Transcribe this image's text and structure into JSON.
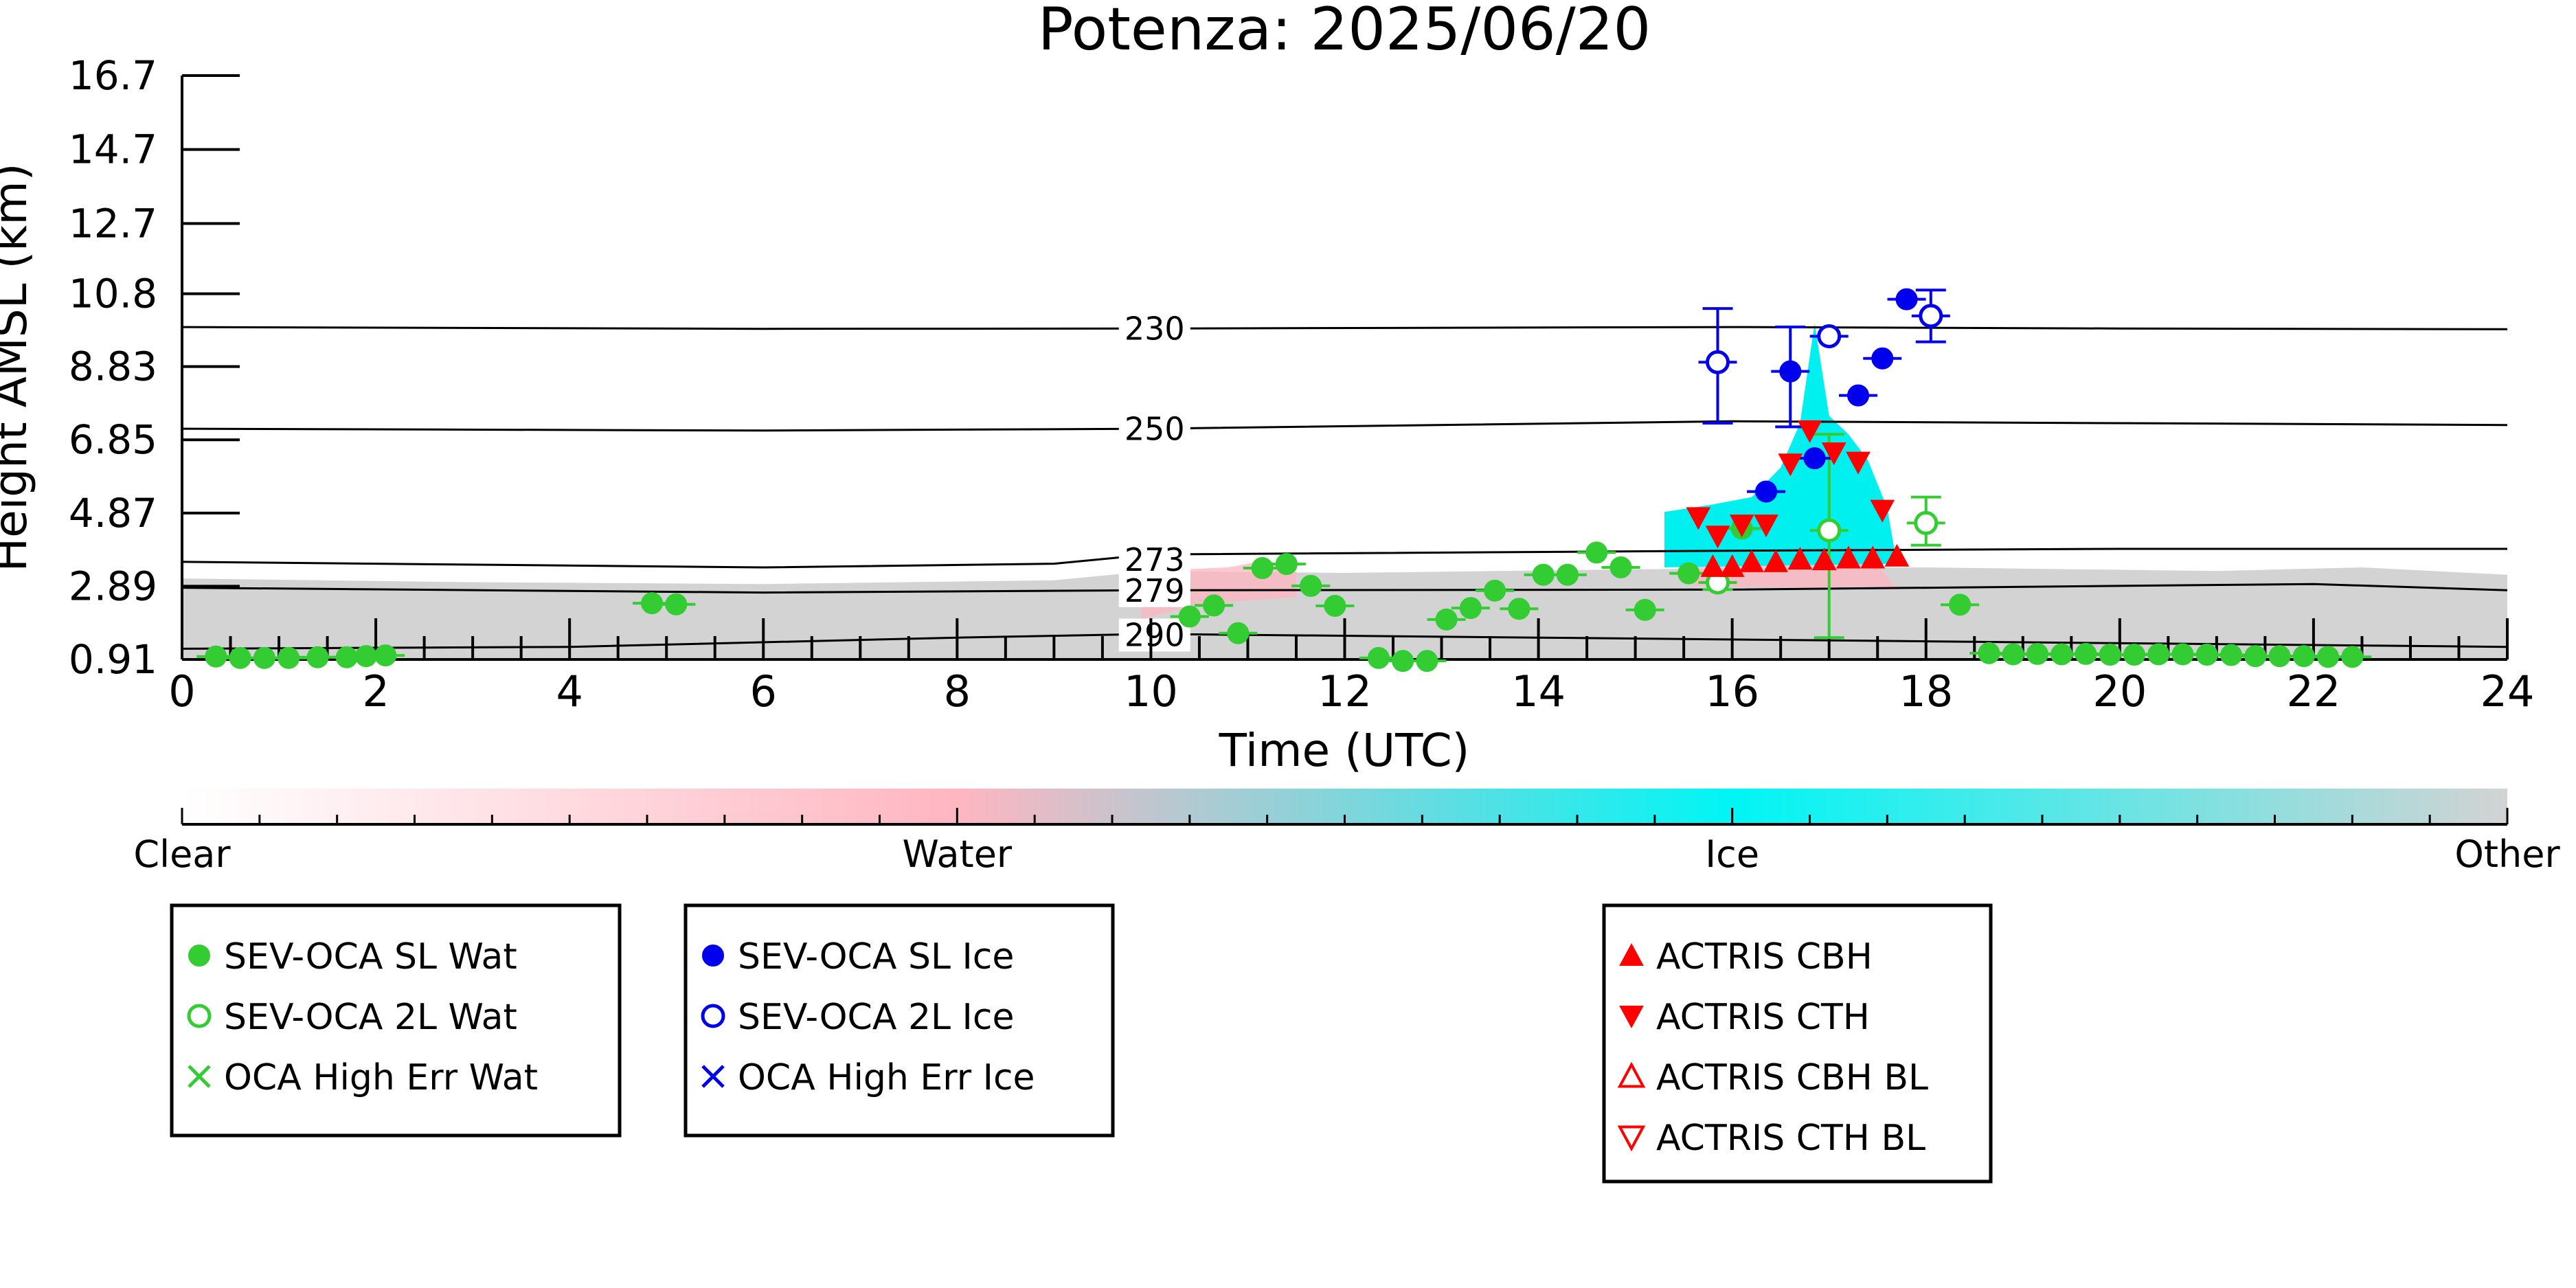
{
  "chart_data": {
    "type": "scatter",
    "title": "Potenza: 2025/06/20",
    "xlabel": "Time (UTC)",
    "ylabel": "Height AMSL (km)",
    "xlim": [
      0,
      24
    ],
    "ylim": [
      0.91,
      16.7
    ],
    "x_ticks": [
      "0",
      "2",
      "4",
      "6",
      "8",
      "10",
      "12",
      "14",
      "16",
      "18",
      "20",
      "22",
      "24"
    ],
    "y_ticks": [
      "0.91",
      "2.89",
      "4.87",
      "6.85",
      "8.83",
      "10.8",
      "12.7",
      "14.7",
      "16.7"
    ],
    "isotherms": [
      {
        "label": "230",
        "label_x": 9.4,
        "points": [
          [
            0,
            9.9
          ],
          [
            6,
            9.85
          ],
          [
            10,
            9.86
          ],
          [
            16,
            9.9
          ],
          [
            20,
            9.86
          ],
          [
            24,
            9.84
          ]
        ]
      },
      {
        "label": "250",
        "label_x": 9.4,
        "points": [
          [
            0,
            7.15
          ],
          [
            6,
            7.1
          ],
          [
            10,
            7.15
          ],
          [
            16,
            7.35
          ],
          [
            20,
            7.3
          ],
          [
            24,
            7.25
          ]
        ]
      },
      {
        "label": "273",
        "label_x": 9.4,
        "points": [
          [
            0,
            3.55
          ],
          [
            6,
            3.4
          ],
          [
            9,
            3.5
          ],
          [
            10,
            3.75
          ],
          [
            16,
            3.85
          ],
          [
            20,
            3.9
          ],
          [
            24,
            3.9
          ]
        ]
      },
      {
        "label": "279",
        "label_x": 9.4,
        "points": [
          [
            0,
            2.85
          ],
          [
            6,
            2.72
          ],
          [
            10,
            2.78
          ],
          [
            16,
            2.8
          ],
          [
            20,
            2.9
          ],
          [
            22,
            2.95
          ],
          [
            24,
            2.78
          ]
        ]
      },
      {
        "label": "290",
        "label_x": 9.4,
        "points": [
          [
            0,
            1.2
          ],
          [
            4,
            1.25
          ],
          [
            8,
            1.5
          ],
          [
            10,
            1.6
          ],
          [
            14,
            1.5
          ],
          [
            18,
            1.4
          ],
          [
            22,
            1.3
          ],
          [
            24,
            1.25
          ]
        ]
      }
    ],
    "cloud_mask": {
      "classes": [
        "Clear",
        "Water",
        "Ice",
        "Other"
      ],
      "colorbar_colors": [
        "#ffffff",
        "#ffb6c1",
        "#00ffff",
        "#d3d3d3"
      ],
      "other_band": [
        [
          0,
          3.1
        ],
        [
          3,
          3.0
        ],
        [
          6,
          2.95
        ],
        [
          9,
          3.05
        ],
        [
          10,
          3.3
        ],
        [
          12,
          3.25
        ],
        [
          15,
          3.35
        ],
        [
          18,
          3.4
        ],
        [
          21,
          3.3
        ],
        [
          22.5,
          3.4
        ],
        [
          24,
          3.2
        ]
      ],
      "ice_regions": [
        [
          [
            15.3,
            3.4
          ],
          [
            15.3,
            4.9
          ],
          [
            15.8,
            5.1
          ],
          [
            16.2,
            5.3
          ],
          [
            16.5,
            6.1
          ],
          [
            16.7,
            7.3
          ],
          [
            16.85,
            10.0
          ],
          [
            17.0,
            7.5
          ],
          [
            17.2,
            7.0
          ],
          [
            17.4,
            6.3
          ],
          [
            17.6,
            5.0
          ],
          [
            17.7,
            3.5
          ]
        ]
      ],
      "water_regions": [
        [
          [
            9.9,
            2.0
          ],
          [
            9.9,
            3.3
          ],
          [
            10.8,
            3.4
          ],
          [
            11.2,
            3.6
          ],
          [
            11.5,
            3.3
          ],
          [
            11.5,
            2.6
          ],
          [
            10.5,
            2.4
          ]
        ],
        [
          [
            15.6,
            2.9
          ],
          [
            15.6,
            3.6
          ],
          [
            16.5,
            3.5
          ],
          [
            17.5,
            3.5
          ],
          [
            17.7,
            2.8
          ]
        ]
      ]
    },
    "series": [
      {
        "name": "SEV-OCA SL Wat",
        "color": "#33cc33",
        "marker": "filled-circle",
        "points": [
          [
            0.35,
            0.99
          ],
          [
            0.6,
            0.95
          ],
          [
            0.85,
            0.95
          ],
          [
            1.1,
            0.95
          ],
          [
            1.4,
            0.97
          ],
          [
            1.7,
            0.97
          ],
          [
            1.9,
            1.0
          ],
          [
            2.1,
            1.02
          ],
          [
            4.85,
            2.43
          ],
          [
            5.1,
            2.4
          ],
          [
            10.4,
            2.07
          ],
          [
            10.65,
            2.37
          ],
          [
            10.9,
            1.62
          ],
          [
            11.15,
            3.38
          ],
          [
            11.4,
            3.49
          ],
          [
            11.65,
            2.9
          ],
          [
            11.9,
            2.36
          ],
          [
            12.35,
            0.95
          ],
          [
            12.6,
            0.87
          ],
          [
            12.85,
            0.87
          ],
          [
            13.05,
            1.99
          ],
          [
            13.3,
            2.3
          ],
          [
            13.55,
            2.77
          ],
          [
            13.8,
            2.28
          ],
          [
            14.05,
            3.2
          ],
          [
            14.3,
            3.2
          ],
          [
            14.6,
            3.8
          ],
          [
            14.85,
            3.4
          ],
          [
            15.1,
            2.25
          ],
          [
            15.55,
            3.24
          ],
          [
            16.1,
            4.45
          ],
          [
            18.35,
            2.39
          ],
          [
            18.65,
            1.08
          ],
          [
            18.9,
            1.05
          ],
          [
            19.15,
            1.06
          ],
          [
            19.4,
            1.05
          ],
          [
            19.65,
            1.06
          ],
          [
            19.9,
            1.04
          ],
          [
            20.15,
            1.04
          ],
          [
            20.4,
            1.05
          ],
          [
            20.65,
            1.05
          ],
          [
            20.9,
            1.04
          ],
          [
            21.15,
            1.03
          ],
          [
            21.4,
            1.0
          ],
          [
            21.65,
            1.0
          ],
          [
            21.9,
            1.0
          ],
          [
            22.15,
            0.98
          ],
          [
            22.4,
            0.98
          ]
        ]
      },
      {
        "name": "SEV-OCA 2L Wat",
        "color": "#33cc33",
        "marker": "open-circle",
        "points": [
          [
            15.85,
            2.99
          ],
          [
            17.0,
            4.4
          ],
          [
            18.0,
            4.6
          ]
        ],
        "errors": [
          [
            15.85,
            2.8,
            3.2
          ],
          [
            17.0,
            1.5,
            7.0
          ],
          [
            18.0,
            4.0,
            5.3
          ]
        ]
      },
      {
        "name": "OCA High Err Wat",
        "color": "#33cc33",
        "marker": "x",
        "points": []
      },
      {
        "name": "SEV-OCA SL Ice",
        "color": "#0000ee",
        "marker": "filled-circle",
        "points": [
          [
            16.35,
            5.45
          ],
          [
            16.6,
            8.7
          ],
          [
            16.85,
            6.35
          ],
          [
            17.3,
            8.05
          ],
          [
            17.55,
            9.05
          ],
          [
            17.8,
            10.65
          ]
        ],
        "errors": [
          [
            16.6,
            7.2,
            9.9
          ]
        ]
      },
      {
        "name": "SEV-OCA 2L Ice",
        "color": "#0000ee",
        "marker": "open-circle",
        "points": [
          [
            15.85,
            8.95
          ],
          [
            17.0,
            9.65
          ],
          [
            18.05,
            10.2
          ]
        ],
        "errors": [
          [
            15.85,
            7.3,
            10.4
          ],
          [
            18.05,
            9.5,
            10.9
          ]
        ]
      },
      {
        "name": "OCA High Err Ice",
        "color": "#0000ee",
        "marker": "x",
        "points": []
      },
      {
        "name": "ACTRIS CBH",
        "color": "#ff0000",
        "marker": "triangle-up",
        "points": [
          [
            15.8,
            3.42
          ],
          [
            16.0,
            3.42
          ],
          [
            16.2,
            3.55
          ],
          [
            16.45,
            3.55
          ],
          [
            16.7,
            3.62
          ],
          [
            16.95,
            3.6
          ],
          [
            17.2,
            3.65
          ],
          [
            17.45,
            3.65
          ],
          [
            17.7,
            3.7
          ]
        ]
      },
      {
        "name": "ACTRIS CTH",
        "color": "#ff0000",
        "marker": "triangle-down",
        "points": [
          [
            15.65,
            4.75
          ],
          [
            15.85,
            4.25
          ],
          [
            16.1,
            4.55
          ],
          [
            16.35,
            4.55
          ],
          [
            16.6,
            6.2
          ],
          [
            16.8,
            7.1
          ],
          [
            17.05,
            6.5
          ],
          [
            17.3,
            6.25
          ],
          [
            17.55,
            4.95
          ]
        ]
      },
      {
        "name": "ACTRIS CBH BL",
        "color": "#ff0000",
        "marker": "open-triangle-up",
        "points": []
      },
      {
        "name": "ACTRIS CTH BL",
        "color": "#ff0000",
        "marker": "open-triangle-down",
        "points": []
      }
    ],
    "legend_groups": [
      [
        "SEV-OCA SL Wat",
        "SEV-OCA 2L Wat",
        "OCA High Err Wat"
      ],
      [
        "SEV-OCA SL Ice",
        "SEV-OCA 2L Ice",
        "OCA High Err Ice"
      ],
      [
        "ACTRIS CBH",
        "ACTRIS CTH",
        "ACTRIS CBH BL",
        "ACTRIS CTH BL"
      ]
    ],
    "grid": false
  }
}
